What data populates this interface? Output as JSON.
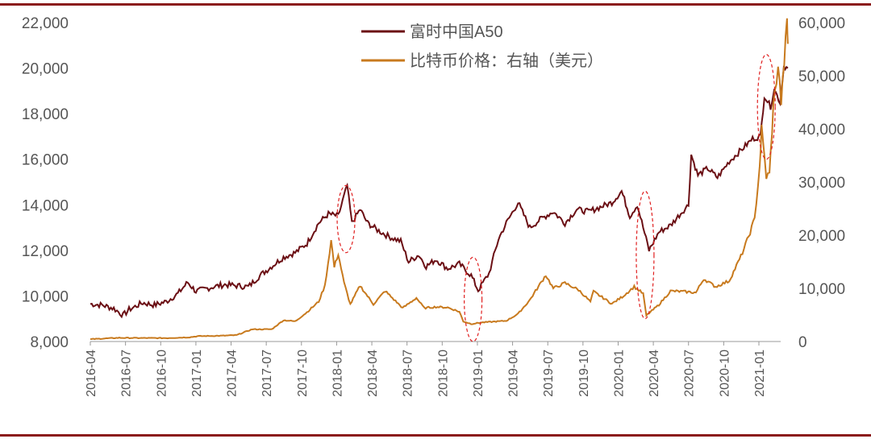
{
  "chart_data": {
    "type": "line",
    "legend_position": "top-center",
    "x_ticks": [
      "2016-04",
      "2016-07",
      "2016-10",
      "2017-01",
      "2017-04",
      "2017-07",
      "2017-10",
      "2018-01",
      "2018-04",
      "2018-07",
      "2018-10",
      "2019-01",
      "2019-04",
      "2019-07",
      "2019-10",
      "2020-01",
      "2020-04",
      "2020-07",
      "2020-10",
      "2021-01"
    ],
    "y_left": {
      "min": 8000,
      "max": 22000,
      "ticks": [
        "8,000",
        "10,000",
        "12,000",
        "14,000",
        "16,000",
        "18,000",
        "20,000",
        "22,000"
      ]
    },
    "y_right": {
      "min": 0,
      "max": 60000,
      "ticks": [
        "0",
        "10,000",
        "20,000",
        "30,000",
        "40,000",
        "50,000",
        "60,000"
      ]
    },
    "series": [
      {
        "name": "富时中国A50",
        "axis": "left",
        "color": "#6b0f14",
        "points": [
          [
            "2016-04-01",
            9650
          ],
          [
            "2016-05-01",
            9600
          ],
          [
            "2016-06-01",
            9450
          ],
          [
            "2016-06-25",
            9150
          ],
          [
            "2016-07-10",
            9400
          ],
          [
            "2016-08-15",
            9700
          ],
          [
            "2016-09-15",
            9600
          ],
          [
            "2016-10-15",
            9750
          ],
          [
            "2016-11-15",
            10100
          ],
          [
            "2016-12-10",
            10600
          ],
          [
            "2017-01-01",
            10200
          ],
          [
            "2017-02-15",
            10400
          ],
          [
            "2017-03-15",
            10500
          ],
          [
            "2017-04-15",
            10450
          ],
          [
            "2017-05-15",
            10400
          ],
          [
            "2017-06-15",
            10900
          ],
          [
            "2017-07-15",
            11300
          ],
          [
            "2017-08-15",
            11700
          ],
          [
            "2017-09-15",
            11900
          ],
          [
            "2017-10-15",
            12300
          ],
          [
            "2017-11-15",
            13200
          ],
          [
            "2017-12-10",
            13600
          ],
          [
            "2018-01-05",
            13500
          ],
          [
            "2018-01-28",
            14850
          ],
          [
            "2018-02-10",
            13200
          ],
          [
            "2018-03-01",
            13800
          ],
          [
            "2018-03-20",
            13200
          ],
          [
            "2018-04-15",
            12900
          ],
          [
            "2018-05-15",
            12600
          ],
          [
            "2018-06-15",
            12400
          ],
          [
            "2018-07-05",
            11500
          ],
          [
            "2018-08-01",
            11800
          ],
          [
            "2018-08-20",
            11300
          ],
          [
            "2018-09-15",
            11600
          ],
          [
            "2018-10-15",
            11200
          ],
          [
            "2018-11-15",
            11400
          ],
          [
            "2018-12-15",
            10900
          ],
          [
            "2019-01-03",
            10250
          ],
          [
            "2019-02-01",
            11000
          ],
          [
            "2019-02-25",
            12500
          ],
          [
            "2019-03-15",
            13200
          ],
          [
            "2019-04-15",
            14100
          ],
          [
            "2019-05-15",
            13000
          ],
          [
            "2019-06-15",
            13400
          ],
          [
            "2019-07-15",
            13700
          ],
          [
            "2019-08-15",
            13200
          ],
          [
            "2019-09-15",
            13800
          ],
          [
            "2019-10-15",
            13700
          ],
          [
            "2019-11-15",
            13900
          ],
          [
            "2019-12-15",
            14100
          ],
          [
            "2020-01-10",
            14600
          ],
          [
            "2020-02-01",
            13500
          ],
          [
            "2020-02-20",
            14000
          ],
          [
            "2020-03-20",
            12000
          ],
          [
            "2020-04-15",
            12800
          ],
          [
            "2020-05-15",
            13100
          ],
          [
            "2020-06-15",
            13700
          ],
          [
            "2020-07-01",
            14000
          ],
          [
            "2020-07-08",
            16200
          ],
          [
            "2020-07-25",
            15300
          ],
          [
            "2020-08-20",
            15600
          ],
          [
            "2020-09-15",
            15200
          ],
          [
            "2020-10-15",
            15900
          ],
          [
            "2020-11-15",
            16400
          ],
          [
            "2020-12-15",
            16900
          ],
          [
            "2021-01-05",
            17000
          ],
          [
            "2021-01-15",
            18800
          ],
          [
            "2021-02-01",
            18300
          ],
          [
            "2021-02-10",
            19100
          ],
          [
            "2021-02-25",
            18500
          ],
          [
            "2021-03-05",
            20100
          ],
          [
            "2021-03-15",
            20000
          ]
        ]
      },
      {
        "name": "比特币价格：右轴（美元）",
        "axis": "right",
        "color": "#c87a1e",
        "points": [
          [
            "2016-04-01",
            430
          ],
          [
            "2016-06-15",
            700
          ],
          [
            "2016-07-15",
            660
          ],
          [
            "2016-10-15",
            640
          ],
          [
            "2016-12-15",
            800
          ],
          [
            "2017-01-05",
            1000
          ],
          [
            "2017-03-15",
            1100
          ],
          [
            "2017-04-15",
            1200
          ],
          [
            "2017-05-25",
            2300
          ],
          [
            "2017-07-15",
            2300
          ],
          [
            "2017-08-15",
            4000
          ],
          [
            "2017-09-15",
            3800
          ],
          [
            "2017-10-15",
            5500
          ],
          [
            "2017-11-15",
            7500
          ],
          [
            "2017-12-01",
            10500
          ],
          [
            "2017-12-17",
            19000
          ],
          [
            "2017-12-25",
            14000
          ],
          [
            "2018-01-05",
            16500
          ],
          [
            "2018-01-20",
            11000
          ],
          [
            "2018-02-06",
            7000
          ],
          [
            "2018-03-01",
            10500
          ],
          [
            "2018-04-05",
            7000
          ],
          [
            "2018-05-05",
            9500
          ],
          [
            "2018-06-20",
            6300
          ],
          [
            "2018-07-25",
            8200
          ],
          [
            "2018-08-15",
            6300
          ],
          [
            "2018-09-15",
            6500
          ],
          [
            "2018-10-15",
            6400
          ],
          [
            "2018-11-15",
            5600
          ],
          [
            "2018-11-25",
            3800
          ],
          [
            "2018-12-15",
            3300
          ],
          [
            "2019-01-15",
            3600
          ],
          [
            "2019-03-15",
            3900
          ],
          [
            "2019-04-15",
            5200
          ],
          [
            "2019-05-15",
            7800
          ],
          [
            "2019-06-26",
            12500
          ],
          [
            "2019-07-15",
            10000
          ],
          [
            "2019-08-15",
            11000
          ],
          [
            "2019-09-20",
            9700
          ],
          [
            "2019-10-20",
            7500
          ],
          [
            "2019-10-28",
            9400
          ],
          [
            "2019-12-15",
            7100
          ],
          [
            "2020-01-15",
            8600
          ],
          [
            "2020-02-12",
            10300
          ],
          [
            "2020-03-05",
            9000
          ],
          [
            "2020-03-13",
            4900
          ],
          [
            "2020-04-15",
            6900
          ],
          [
            "2020-05-15",
            9500
          ],
          [
            "2020-06-15",
            9400
          ],
          [
            "2020-07-20",
            9200
          ],
          [
            "2020-08-10",
            11800
          ],
          [
            "2020-09-10",
            10300
          ],
          [
            "2020-10-15",
            11400
          ],
          [
            "2020-11-15",
            16000
          ],
          [
            "2020-12-01",
            19000
          ],
          [
            "2020-12-20",
            23000
          ],
          [
            "2021-01-03",
            33000
          ],
          [
            "2021-01-08",
            40000
          ],
          [
            "2021-01-20",
            31000
          ],
          [
            "2021-01-28",
            31500
          ],
          [
            "2021-02-08",
            44000
          ],
          [
            "2021-02-20",
            52000
          ],
          [
            "2021-02-28",
            45000
          ],
          [
            "2021-03-13",
            60000
          ],
          [
            "2021-03-15",
            56000
          ]
        ]
      }
    ],
    "annotations": [
      {
        "type": "dashed-ellipse",
        "x": "2018-01-25",
        "y_left": [
          11900,
          14850
        ]
      },
      {
        "type": "dashed-ellipse",
        "x": "2018-12-20",
        "y_left": [
          8000,
          11700
        ]
      },
      {
        "type": "dashed-ellipse",
        "x": "2020-03-10",
        "y_left": [
          9000,
          14600
        ]
      },
      {
        "type": "dashed-ellipse",
        "x": "2021-01-20",
        "y_left": [
          16000,
          20600
        ]
      }
    ]
  }
}
